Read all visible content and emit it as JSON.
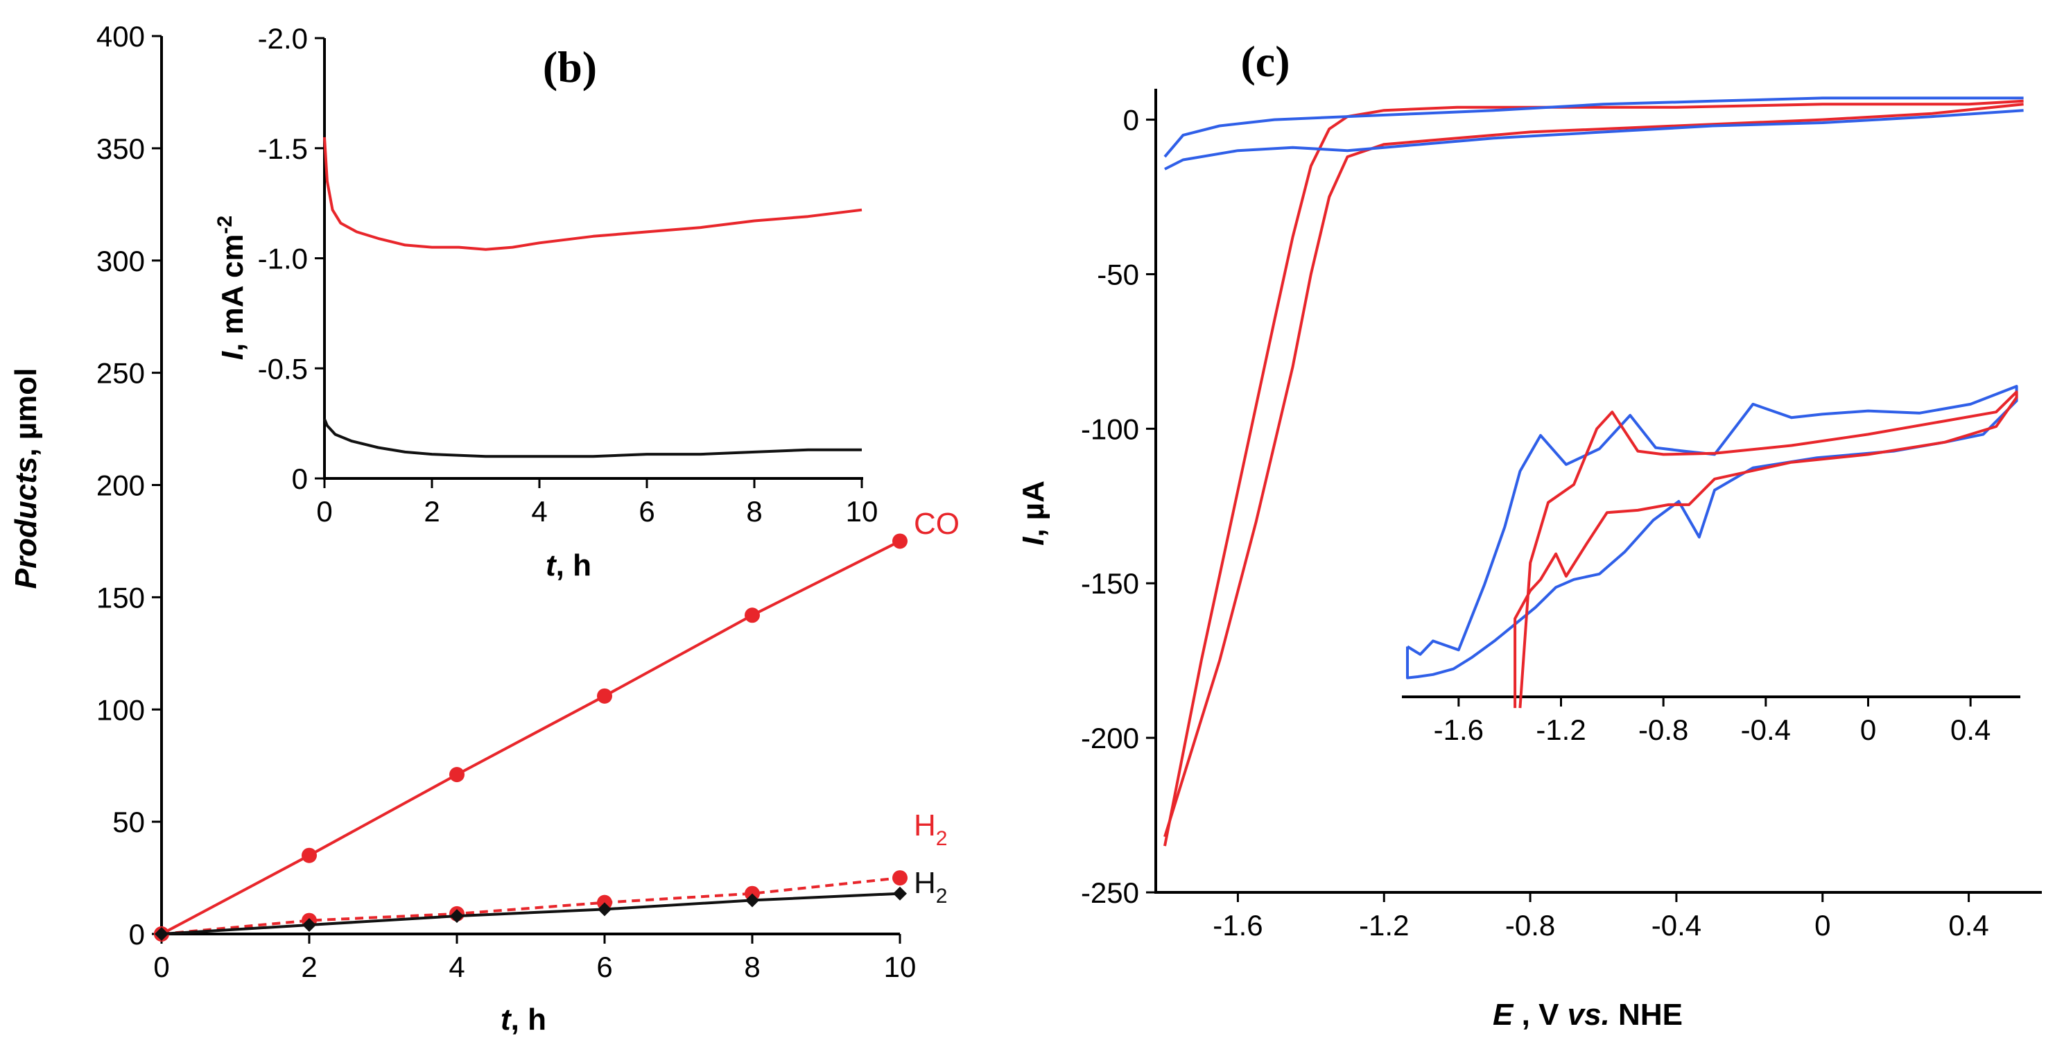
{
  "chart_data": [
    {
      "id": "b-main",
      "type": "line",
      "panel_label": "(b)",
      "xlabel_var": "t",
      "xlabel_unit": ", h",
      "ylabel_var": "Products",
      "ylabel_unit": ", µmol",
      "xlim": [
        0,
        10
      ],
      "ylim": [
        0,
        400
      ],
      "xticks": [
        0,
        2,
        4,
        6,
        8,
        10
      ],
      "yticks": [
        0,
        50,
        100,
        150,
        200,
        250,
        300,
        350,
        400
      ],
      "series": [
        {
          "name": "CO",
          "color": "#e8262b",
          "marker": "circle",
          "dashed": false,
          "x": [
            0,
            2,
            4,
            6,
            8,
            10
          ],
          "y": [
            0,
            35,
            71,
            106,
            142,
            175
          ]
        },
        {
          "name": "H2",
          "color": "#e8262b",
          "marker": "circle",
          "dashed": true,
          "x": [
            0,
            2,
            4,
            6,
            8,
            10
          ],
          "y": [
            0,
            6,
            9,
            14,
            18,
            25
          ]
        },
        {
          "name": "H2",
          "color": "#111111",
          "marker": "diamond",
          "dashed": false,
          "x": [
            0,
            2,
            4,
            6,
            8,
            10
          ],
          "y": [
            0,
            4,
            8,
            11,
            15,
            18
          ]
        }
      ],
      "annotations": [
        {
          "text": "CO",
          "color": "#e8262b"
        },
        {
          "text": "H",
          "sub": "2",
          "color": "#e8262b"
        },
        {
          "text": "H",
          "sub": "2",
          "color": "#111111"
        }
      ]
    },
    {
      "id": "b-inset",
      "type": "line",
      "xlabel_var": "t",
      "xlabel_unit": ", h",
      "ylabel_var": "I",
      "ylabel_unit": ", mA cm",
      "ylabel_sup": "-2",
      "xlim": [
        0,
        10
      ],
      "ylim": [
        0,
        -2.0
      ],
      "xticks": [
        0,
        2,
        4,
        6,
        8,
        10
      ],
      "yticks": [
        0,
        -0.5,
        -1.0,
        -1.5,
        -2.0
      ],
      "ytick_labels": [
        "0",
        "-0.5",
        "-1.0",
        "-1.5",
        "-2.0"
      ],
      "series": [
        {
          "name": "red",
          "color": "#e8262b",
          "x": [
            0,
            0.05,
            0.15,
            0.3,
            0.6,
            1,
            1.5,
            2,
            2.5,
            3,
            3.5,
            4,
            5,
            6,
            7,
            8,
            9,
            10
          ],
          "y": [
            -1.55,
            -1.35,
            -1.22,
            -1.16,
            -1.12,
            -1.09,
            -1.06,
            -1.05,
            -1.05,
            -1.04,
            -1.05,
            -1.07,
            -1.1,
            -1.12,
            -1.14,
            -1.17,
            -1.19,
            -1.22
          ]
        },
        {
          "name": "black",
          "color": "#111111",
          "x": [
            0,
            0.05,
            0.2,
            0.5,
            1,
            1.5,
            2,
            3,
            4,
            5,
            6,
            7,
            8,
            9,
            10
          ],
          "y": [
            -0.27,
            -0.24,
            -0.2,
            -0.17,
            -0.14,
            -0.12,
            -0.11,
            -0.1,
            -0.1,
            -0.1,
            -0.11,
            -0.11,
            -0.12,
            -0.13,
            -0.13
          ]
        }
      ]
    },
    {
      "id": "c-main",
      "type": "line",
      "panel_label": "(c)",
      "xlabel_var": "E",
      "xlabel_mid": " , V ",
      "xlabel_it": "vs.",
      "xlabel_end": " NHE",
      "ylabel_var": "I",
      "ylabel_unit": ", µA",
      "xlim": [
        -1.8,
        0.6
      ],
      "ylim": [
        -250,
        10
      ],
      "xticks": [
        -1.6,
        -1.2,
        -0.8,
        -0.4,
        0,
        0.4
      ],
      "xtick_labels": [
        "-1.6",
        "-1.2",
        "-0.8",
        "-0.4",
        "0",
        "0.4"
      ],
      "yticks": [
        0,
        -50,
        -100,
        -150,
        -200,
        -250
      ],
      "series": [
        {
          "name": "red-forward",
          "color": "#e8262b",
          "x": [
            -1.8,
            -1.7,
            -1.6,
            -1.5,
            -1.45,
            -1.4,
            -1.35,
            -1.3,
            -1.2,
            -1.0,
            -0.8,
            -0.4,
            0,
            0.4,
            0.55
          ],
          "y": [
            -235,
            -175,
            -120,
            -65,
            -38,
            -15,
            -3,
            1,
            3,
            4,
            4,
            4,
            5,
            5,
            6
          ]
        },
        {
          "name": "red-reverse",
          "color": "#e8262b",
          "x": [
            0.55,
            0.3,
            0,
            -0.4,
            -0.8,
            -1.0,
            -1.2,
            -1.3,
            -1.35,
            -1.4,
            -1.45,
            -1.55,
            -1.65,
            -1.8
          ],
          "y": [
            5,
            2,
            0,
            -2,
            -4,
            -6,
            -8,
            -12,
            -25,
            -50,
            -80,
            -130,
            -175,
            -232
          ]
        },
        {
          "name": "blue-upper",
          "color": "#2f5fe8",
          "x": [
            -1.8,
            -1.75,
            -1.65,
            -1.5,
            -1.3,
            -1.1,
            -0.9,
            -0.6,
            -0.3,
            0,
            0.3,
            0.55
          ],
          "y": [
            -12,
            -5,
            -2,
            0,
            1,
            2,
            3,
            5,
            6,
            7,
            7,
            7
          ]
        },
        {
          "name": "blue-lower",
          "color": "#2f5fe8",
          "x": [
            0.55,
            0.3,
            0,
            -0.3,
            -0.6,
            -0.9,
            -1.1,
            -1.2,
            -1.3,
            -1.45,
            -1.6,
            -1.75,
            -1.8
          ],
          "y": [
            3,
            1,
            -1,
            -2,
            -4,
            -6,
            -8,
            -9,
            -10,
            -9,
            -10,
            -13,
            -16
          ]
        }
      ]
    },
    {
      "id": "c-inset",
      "type": "line",
      "xlim": [
        -1.8,
        0.6
      ],
      "ylim": [
        -30,
        6
      ],
      "xticks": [
        -1.6,
        -1.2,
        -0.8,
        -0.4,
        0,
        0.4
      ],
      "xtick_labels": [
        "-1.6",
        "-1.2",
        "-0.8",
        "-0.4",
        "0",
        "0.4"
      ],
      "series": [
        {
          "name": "blue",
          "color": "#2f5fe8",
          "x": [
            -1.8,
            -1.75,
            -1.7,
            -1.6,
            -1.5,
            -1.42,
            -1.36,
            -1.28,
            -1.18,
            -1.05,
            -0.93,
            -0.83,
            -0.72,
            -0.6,
            -0.45,
            -0.3,
            -0.18,
            0,
            0.2,
            0.4,
            0.58,
            0.58,
            0.45,
            0.3,
            0.1,
            -0.2,
            -0.45,
            -0.6,
            -0.66,
            -0.74,
            -0.84,
            -0.95,
            -1.05,
            -1.15,
            -1.22,
            -1.3,
            -1.38,
            -1.46,
            -1.55,
            -1.62,
            -1.7,
            -1.76,
            -1.8,
            -1.8
          ],
          "y": [
            -25.5,
            -26.2,
            -25.0,
            -25.8,
            -20.0,
            -14.8,
            -9.8,
            -6.6,
            -9.2,
            -7.8,
            -4.8,
            -7.7,
            -8.0,
            -8.3,
            -3.8,
            -5.0,
            -4.7,
            -4.4,
            -4.6,
            -3.8,
            -2.2,
            -3.5,
            -6.5,
            -7.2,
            -8.0,
            -8.6,
            -9.5,
            -11.5,
            -15.7,
            -12.5,
            -14.2,
            -17.0,
            -19.0,
            -19.5,
            -20.2,
            -22.0,
            -23.5,
            -25.0,
            -26.5,
            -27.5,
            -28.0,
            -28.2,
            -28.3,
            -25.5
          ]
        },
        {
          "name": "red",
          "color": "#e8262b",
          "x": [
            -1.36,
            -1.32,
            -1.25,
            -1.15,
            -1.06,
            -1.0,
            -0.9,
            -0.8,
            -0.6,
            -0.3,
            0,
            0.3,
            0.5,
            0.58,
            0.58,
            0.5,
            0.3,
            0,
            -0.3,
            -0.6,
            -0.7,
            -0.78,
            -0.9,
            -1.02,
            -1.1,
            -1.18,
            -1.22,
            -1.28,
            -1.32,
            -1.38,
            -1.38
          ],
          "y": [
            -31,
            -18,
            -12.6,
            -11.0,
            -6.0,
            -4.5,
            -8.0,
            -8.3,
            -8.2,
            -7.5,
            -6.5,
            -5.3,
            -4.5,
            -2.7,
            -3.2,
            -5.8,
            -7.2,
            -8.3,
            -9.0,
            -10.5,
            -12.8,
            -12.8,
            -13.3,
            -13.5,
            -16.3,
            -19.2,
            -17.2,
            -19.5,
            -20.5,
            -23.0,
            -31
          ]
        }
      ]
    }
  ]
}
